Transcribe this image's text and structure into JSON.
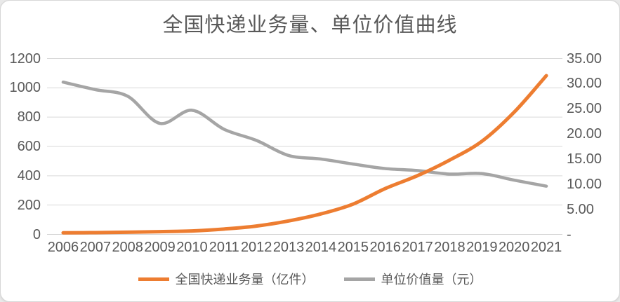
{
  "colors": {
    "grid": "#D9D9D9",
    "axis_line": "#D2D2D2",
    "axis_text": "#595959",
    "title_text": "#595959",
    "series_volume": "#ED7D31",
    "series_unit_value": "#A5A5A5"
  },
  "chart_data": {
    "type": "line",
    "title": "全国快递业务量、单位价值曲线",
    "x": [
      "2006",
      "2007",
      "2008",
      "2009",
      "2010",
      "2011",
      "2012",
      "2013",
      "2014",
      "2015",
      "2016",
      "2017",
      "2018",
      "2019",
      "2020",
      "2021"
    ],
    "series": [
      {
        "name": "全国快递业务量（亿件）",
        "axis": "left",
        "color": "#ED7D31",
        "values": [
          10.6,
          12.0,
          15.1,
          18.6,
          23.4,
          36.7,
          56.9,
          91.9,
          139.6,
          206.7,
          312.8,
          400.6,
          507.1,
          635.2,
          833.6,
          1083.0
        ]
      },
      {
        "name": "单位价值量（元）",
        "axis": "right",
        "color": "#A5A5A5",
        "values": [
          30.3,
          28.8,
          27.5,
          22.1,
          24.7,
          20.9,
          18.7,
          15.7,
          15.0,
          14.0,
          13.1,
          12.7,
          12.0,
          12.1,
          10.8,
          9.6
        ]
      }
    ],
    "left_axis": {
      "min": 0,
      "max": 1200,
      "step": 200,
      "tick_labels": [
        "0",
        "200",
        "400",
        "600",
        "800",
        "1000",
        "1200"
      ]
    },
    "right_axis": {
      "min": 0,
      "max": 35,
      "step": 5,
      "tick_labels": [
        "-",
        "5.00",
        "10.00",
        "15.00",
        "20.00",
        "25.00",
        "30.00",
        "35.00"
      ]
    },
    "grid": true,
    "smooth": true,
    "legend_position": "bottom"
  }
}
